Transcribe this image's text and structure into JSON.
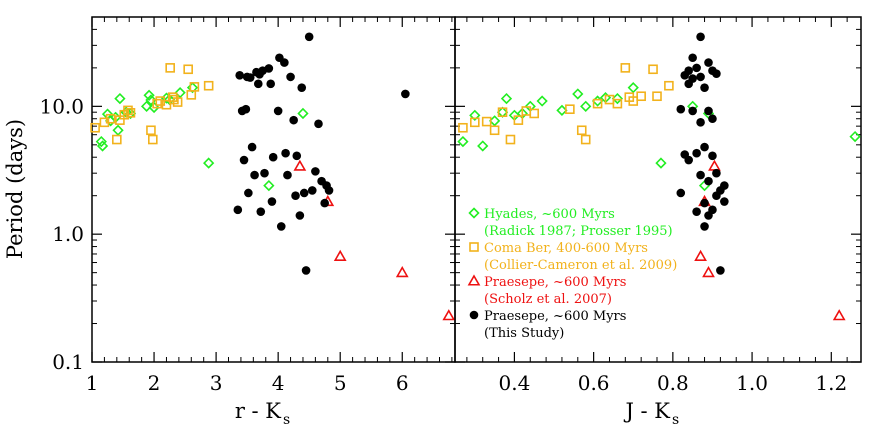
{
  "chart_data": [
    {
      "type": "scatter",
      "xlabel": "r - K",
      "xlabel_sub": "s",
      "ylabel": "Period (days)",
      "xlim": [
        1.0,
        6.85
      ],
      "ylim": [
        0.1,
        50
      ],
      "yscale": "log",
      "grid": false,
      "xticks": [
        1,
        2,
        3,
        4,
        5,
        6
      ],
      "xtick_labels": [
        "1",
        "2",
        "3",
        "4",
        "5",
        "6"
      ],
      "yticks": [
        0.1,
        1.0,
        10.0
      ],
      "ytick_labels": [
        "0.1",
        "1.0",
        "10.0"
      ],
      "series": [
        {
          "key": "hyades",
          "marker": "diamond",
          "color": "#22ee22",
          "points": [
            [
              1.15,
              5.3
            ],
            [
              1.17,
              4.9
            ],
            [
              1.25,
              8.7
            ],
            [
              1.3,
              7.7
            ],
            [
              1.38,
              8.2
            ],
            [
              1.42,
              6.5
            ],
            [
              1.45,
              11.5
            ],
            [
              1.55,
              9.0
            ],
            [
              1.62,
              8.8
            ],
            [
              1.88,
              10.0
            ],
            [
              1.92,
              12.2
            ],
            [
              1.95,
              11.2
            ],
            [
              2.0,
              9.8
            ],
            [
              2.2,
              11.6
            ],
            [
              2.25,
              11.3
            ],
            [
              2.42,
              12.8
            ],
            [
              2.62,
              14.0
            ],
            [
              2.88,
              3.6
            ],
            [
              3.85,
              2.4
            ],
            [
              4.4,
              8.8
            ]
          ]
        },
        {
          "key": "coma",
          "marker": "square",
          "color": "#f2b21c",
          "points": [
            [
              1.05,
              6.8
            ],
            [
              1.2,
              7.5
            ],
            [
              1.3,
              8.0
            ],
            [
              1.4,
              5.5
            ],
            [
              1.45,
              7.8
            ],
            [
              1.52,
              8.6
            ],
            [
              1.58,
              9.3
            ],
            [
              1.62,
              8.9
            ],
            [
              1.95,
              6.5
            ],
            [
              1.98,
              5.5
            ],
            [
              2.05,
              10.5
            ],
            [
              2.1,
              11.0
            ],
            [
              2.2,
              10.3
            ],
            [
              2.26,
              20.0
            ],
            [
              2.3,
              11.8
            ],
            [
              2.32,
              11.3
            ],
            [
              2.38,
              10.8
            ],
            [
              2.55,
              19.5
            ],
            [
              2.6,
              12.3
            ],
            [
              2.65,
              14.2
            ],
            [
              2.88,
              14.5
            ]
          ]
        },
        {
          "key": "praesepe_scholz",
          "marker": "triangle",
          "color": "#ee1111",
          "points": [
            [
              4.35,
              3.4
            ],
            [
              4.8,
              1.8
            ],
            [
              5.0,
              0.67
            ],
            [
              6.0,
              0.5
            ],
            [
              6.75,
              0.23
            ]
          ]
        },
        {
          "key": "praesepe_this",
          "marker": "circle",
          "color": "#000000",
          "points": [
            [
              3.35,
              1.55
            ],
            [
              3.38,
              17.5
            ],
            [
              3.42,
              9.2
            ],
            [
              3.48,
              9.5
            ],
            [
              3.45,
              3.8
            ],
            [
              3.5,
              17.0
            ],
            [
              3.52,
              2.1
            ],
            [
              3.55,
              16.8
            ],
            [
              3.58,
              4.8
            ],
            [
              3.62,
              2.9
            ],
            [
              3.65,
              18.5
            ],
            [
              3.68,
              15.0
            ],
            [
              3.7,
              17.8
            ],
            [
              3.72,
              1.5
            ],
            [
              3.75,
              19.0
            ],
            [
              3.78,
              3.0
            ],
            [
              3.85,
              19.8
            ],
            [
              3.88,
              15.0
            ],
            [
              3.9,
              1.8
            ],
            [
              3.92,
              4.0
            ],
            [
              4.0,
              9.2
            ],
            [
              4.02,
              24.0
            ],
            [
              4.05,
              1.15
            ],
            [
              4.1,
              22.0
            ],
            [
              4.12,
              4.3
            ],
            [
              4.15,
              2.9
            ],
            [
              4.2,
              17.0
            ],
            [
              4.25,
              7.8
            ],
            [
              4.28,
              2.0
            ],
            [
              4.3,
              4.1
            ],
            [
              4.35,
              1.4
            ],
            [
              4.38,
              14.0
            ],
            [
              4.42,
              2.1
            ],
            [
              4.45,
              0.52
            ],
            [
              4.5,
              35.0
            ],
            [
              4.55,
              2.2
            ],
            [
              4.6,
              3.1
            ],
            [
              4.65,
              7.3
            ],
            [
              4.7,
              2.6
            ],
            [
              4.75,
              1.75
            ],
            [
              4.78,
              2.4
            ],
            [
              4.82,
              2.2
            ],
            [
              6.05,
              12.5
            ]
          ]
        }
      ]
    },
    {
      "type": "scatter",
      "xlabel": "J - K",
      "xlabel_sub": "s",
      "ylabel": "",
      "xlim": [
        0.25,
        1.275
      ],
      "ylim": [
        0.1,
        50
      ],
      "yscale": "log",
      "grid": false,
      "xticks": [
        0.4,
        0.6,
        0.8,
        1.0,
        1.2
      ],
      "xtick_labels": [
        "0.4",
        "0.6",
        "0.8",
        "1.0",
        "1.2"
      ],
      "yticks": [
        0.1,
        1.0,
        10.0
      ],
      "ytick_labels": [
        "",
        "",
        ""
      ],
      "series": [
        {
          "key": "hyades",
          "marker": "diamond",
          "color": "#22ee22",
          "points": [
            [
              0.27,
              5.3
            ],
            [
              0.3,
              8.5
            ],
            [
              0.32,
              4.9
            ],
            [
              0.35,
              7.7
            ],
            [
              0.37,
              9.0
            ],
            [
              0.38,
              11.5
            ],
            [
              0.4,
              8.5
            ],
            [
              0.42,
              8.8
            ],
            [
              0.44,
              10.0
            ],
            [
              0.47,
              11.0
            ],
            [
              0.52,
              9.3
            ],
            [
              0.56,
              12.5
            ],
            [
              0.58,
              10.0
            ],
            [
              0.61,
              11.0
            ],
            [
              0.63,
              11.7
            ],
            [
              0.66,
              11.5
            ],
            [
              0.7,
              14.0
            ],
            [
              0.77,
              3.6
            ],
            [
              0.85,
              10.0
            ],
            [
              0.88,
              2.4
            ],
            [
              0.89,
              8.8
            ],
            [
              1.26,
              5.8
            ]
          ]
        },
        {
          "key": "coma",
          "marker": "square",
          "color": "#f2b21c",
          "points": [
            [
              0.27,
              6.8
            ],
            [
              0.3,
              7.5
            ],
            [
              0.33,
              7.6
            ],
            [
              0.35,
              6.5
            ],
            [
              0.37,
              9.0
            ],
            [
              0.39,
              5.5
            ],
            [
              0.41,
              7.8
            ],
            [
              0.43,
              9.2
            ],
            [
              0.45,
              8.8
            ],
            [
              0.54,
              9.5
            ],
            [
              0.57,
              6.5
            ],
            [
              0.58,
              5.5
            ],
            [
              0.61,
              10.5
            ],
            [
              0.64,
              11.3
            ],
            [
              0.66,
              10.5
            ],
            [
              0.68,
              20.0
            ],
            [
              0.69,
              11.8
            ],
            [
              0.7,
              11.0
            ],
            [
              0.72,
              12.0
            ],
            [
              0.75,
              19.5
            ],
            [
              0.76,
              12.0
            ],
            [
              0.79,
              14.5
            ]
          ]
        },
        {
          "key": "praesepe_scholz",
          "marker": "triangle",
          "color": "#ee1111",
          "points": [
            [
              0.87,
              0.67
            ],
            [
              0.88,
              1.8
            ],
            [
              0.89,
              0.5
            ],
            [
              0.905,
              3.4
            ],
            [
              1.22,
              0.23
            ]
          ]
        },
        {
          "key": "praesepe_this",
          "marker": "circle",
          "color": "#000000",
          "points": [
            [
              0.82,
              9.5
            ],
            [
              0.82,
              2.1
            ],
            [
              0.83,
              17.5
            ],
            [
              0.83,
              4.2
            ],
            [
              0.84,
              19.0
            ],
            [
              0.84,
              15.0
            ],
            [
              0.84,
              3.8
            ],
            [
              0.85,
              16.5
            ],
            [
              0.85,
              24.0
            ],
            [
              0.85,
              9.2
            ],
            [
              0.86,
              20.0
            ],
            [
              0.86,
              4.3
            ],
            [
              0.86,
              1.5
            ],
            [
              0.87,
              35.0
            ],
            [
              0.87,
              17.0
            ],
            [
              0.87,
              7.5
            ],
            [
              0.87,
              2.9
            ],
            [
              0.88,
              14.0
            ],
            [
              0.88,
              4.8
            ],
            [
              0.88,
              1.75
            ],
            [
              0.88,
              1.15
            ],
            [
              0.89,
              22.0
            ],
            [
              0.89,
              9.2
            ],
            [
              0.89,
              2.6
            ],
            [
              0.89,
              1.4
            ],
            [
              0.9,
              19.0
            ],
            [
              0.9,
              4.1
            ],
            [
              0.9,
              1.55
            ],
            [
              0.91,
              18.0
            ],
            [
              0.91,
              3.0
            ],
            [
              0.92,
              2.2
            ],
            [
              0.92,
              0.52
            ],
            [
              0.93,
              2.4
            ],
            [
              0.93,
              1.8
            ],
            [
              0.91,
              2.0
            ],
            [
              0.9,
              8.0
            ]
          ]
        }
      ]
    }
  ],
  "legend": {
    "placement": "lower-right of right panel",
    "entries": [
      {
        "key": "hyades",
        "marker": "diamond",
        "color": "#22ee22",
        "line1": "Hyades, ~600 Myrs",
        "line2": "(Radick 1987; Prosser 1995)"
      },
      {
        "key": "coma",
        "marker": "square",
        "color": "#f2b21c",
        "line1": "Coma Ber, 400-600 Myrs",
        "line2": "(Collier-Cameron et al. 2009)"
      },
      {
        "key": "praesepe_scholz",
        "marker": "triangle",
        "color": "#ee1111",
        "line1": "Praesepe, ~600 Myrs",
        "line2": "(Scholz et al. 2007)"
      },
      {
        "key": "praesepe_this",
        "marker": "circle",
        "color": "#000000",
        "line1": "Praesepe, ~600 Myrs",
        "line2": "(This Study)"
      }
    ]
  }
}
